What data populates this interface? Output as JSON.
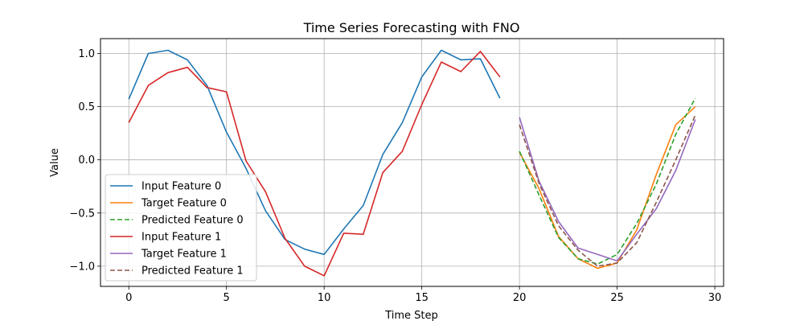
{
  "chart_data": {
    "type": "line",
    "title": "Time Series Forecasting with FNO",
    "xlabel": "Time Step",
    "ylabel": "Value",
    "xlim": [
      -1.45,
      30.45
    ],
    "ylim": [
      -1.19,
      1.14
    ],
    "xticks": [
      0,
      5,
      10,
      15,
      20,
      25,
      30
    ],
    "yticks": [
      -1.0,
      -0.5,
      0.0,
      0.5,
      1.0
    ],
    "xtick_labels": [
      "0",
      "5",
      "10",
      "15",
      "20",
      "25",
      "30"
    ],
    "ytick_labels": [
      "−1.0",
      "−0.5",
      "0.0",
      "0.5",
      "1.0"
    ],
    "grid": true,
    "legend_position": "lower-left",
    "series": [
      {
        "name": "Input Feature 0",
        "color": "#1f77b4",
        "dash": "solid",
        "x": [
          0,
          1,
          2,
          3,
          4,
          5,
          6,
          7,
          8,
          9,
          10,
          11,
          12,
          13,
          14,
          15,
          16,
          17,
          18,
          19
        ],
        "y": [
          0.57,
          1.0,
          1.03,
          0.94,
          0.7,
          0.26,
          -0.08,
          -0.48,
          -0.75,
          -0.84,
          -0.89,
          -0.65,
          -0.43,
          0.05,
          0.35,
          0.78,
          1.03,
          0.94,
          0.95,
          0.58
        ]
      },
      {
        "name": "Target Feature 0",
        "color": "#ff7f0e",
        "dash": "solid",
        "x": [
          20,
          21,
          22,
          23,
          24,
          25,
          26,
          27,
          28,
          29
        ],
        "y": [
          0.07,
          -0.27,
          -0.72,
          -0.93,
          -1.02,
          -0.97,
          -0.66,
          -0.14,
          0.33,
          0.5
        ]
      },
      {
        "name": "Predicted Feature 0",
        "color": "#2ca02c",
        "dash": "dashed",
        "x": [
          20,
          21,
          22,
          23,
          24,
          25,
          26,
          27,
          28,
          29
        ],
        "y": [
          0.08,
          -0.33,
          -0.73,
          -0.93,
          -0.98,
          -0.89,
          -0.6,
          -0.23,
          0.24,
          0.58
        ]
      },
      {
        "name": "Input Feature 1",
        "color": "#d62728",
        "dash": "solid",
        "x": [
          0,
          1,
          2,
          3,
          4,
          5,
          6,
          7,
          8,
          9,
          10,
          11,
          12,
          13,
          14,
          15,
          16,
          17,
          18,
          19
        ],
        "y": [
          0.35,
          0.7,
          0.82,
          0.87,
          0.68,
          0.64,
          -0.01,
          -0.3,
          -0.74,
          -1.0,
          -1.09,
          -0.69,
          -0.7,
          -0.12,
          0.08,
          0.52,
          0.92,
          0.83,
          1.02,
          0.78
        ]
      },
      {
        "name": "Target Feature 1",
        "color": "#9467bd",
        "dash": "solid",
        "x": [
          20,
          21,
          22,
          23,
          24,
          25,
          26,
          27,
          28,
          29
        ],
        "y": [
          0.4,
          -0.2,
          -0.58,
          -0.83,
          -0.89,
          -0.95,
          -0.7,
          -0.46,
          -0.1,
          0.38
        ]
      },
      {
        "name": "Predicted Feature 1",
        "color": "#8c564b",
        "dash": "dashed",
        "x": [
          20,
          21,
          22,
          23,
          24,
          25,
          26,
          27,
          28,
          29
        ],
        "y": [
          0.33,
          -0.22,
          -0.62,
          -0.85,
          -1.0,
          -0.97,
          -0.78,
          -0.4,
          0.0,
          0.42
        ]
      }
    ]
  }
}
